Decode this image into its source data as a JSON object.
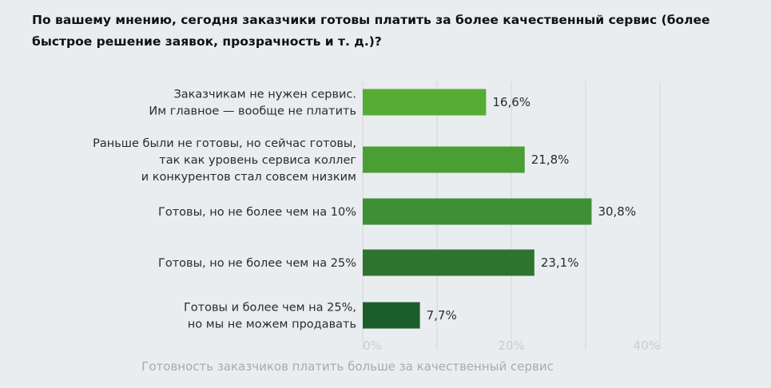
{
  "chart_data": {
    "type": "bar",
    "orientation": "horizontal",
    "title": "По вашему мнению, сегодня заказчики готовы платить за более качественный сервис (более быстрое решение заявок, прозрачность и т. д.)?",
    "categories": [
      [
        "Заказчикам не нужен сервис.",
        "Им главное — вообще не платить"
      ],
      [
        "Раньше были не готовы, но сейчас готовы,",
        "так как уровень сервиса коллег",
        "и конкурентов стал совсем низким"
      ],
      [
        "Готовы, но не более чем на 10%"
      ],
      [
        "Готовы, но не более чем на 25%"
      ],
      [
        "Готовы и более чем на 25%,",
        "но мы не можем продавать"
      ]
    ],
    "values": [
      16.6,
      21.8,
      30.8,
      23.1,
      7.7
    ],
    "data_labels": [
      "16,6%",
      "21,8%",
      "30,8%",
      "23,1%",
      "7,7%"
    ],
    "colors": [
      "#55ad35",
      "#4a9e34",
      "#3e9034",
      "#2e7430",
      "#1c5e2b"
    ],
    "xlim": [
      0,
      40
    ],
    "x_ticks": [
      0,
      20,
      40
    ],
    "x_tick_labels": [
      "0%",
      "20%",
      "40%"
    ],
    "gridlines": [
      0,
      10,
      20,
      30,
      40
    ],
    "grid": true,
    "xlabel": "Готовность заказчиков платить больше за качественный сервис"
  }
}
